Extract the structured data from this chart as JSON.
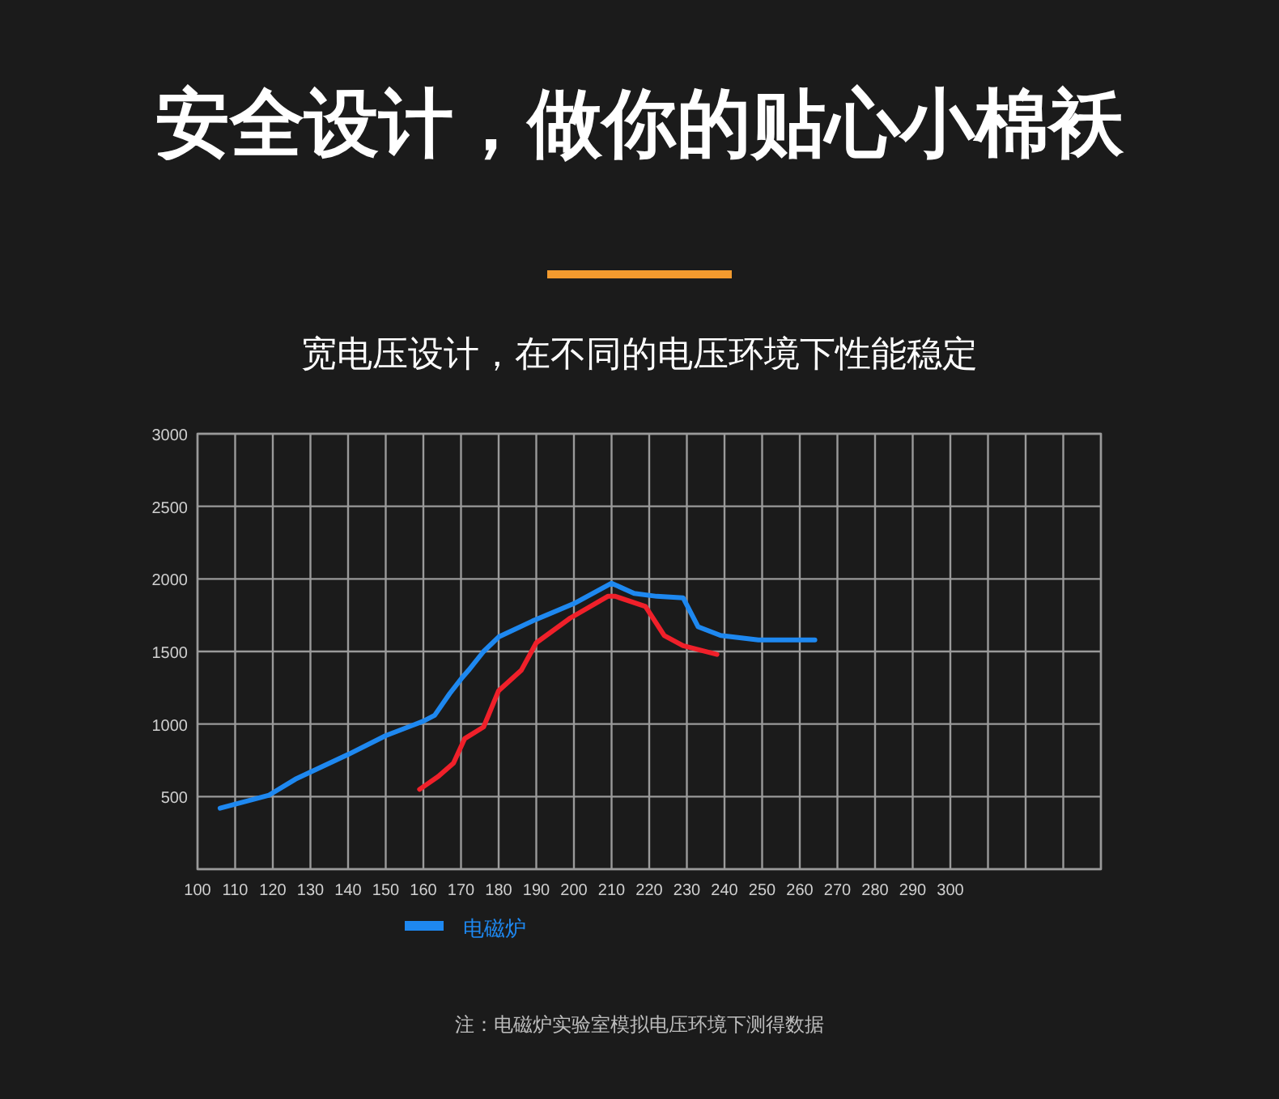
{
  "chart_data": {
    "type": "line",
    "title": "安全设计，做你的贴心小棉袄",
    "subtitle": "宽电压设计，在不同的电压环境下性能稳定",
    "xlim": [
      100,
      340
    ],
    "ylim": [
      0,
      3000
    ],
    "xticks": [
      100,
      110,
      120,
      130,
      140,
      150,
      160,
      170,
      180,
      190,
      200,
      210,
      220,
      230,
      240,
      250,
      260,
      270,
      280,
      290,
      300,
      {
        "value": 310,
        "label": null
      },
      {
        "value": 320,
        "label": null
      },
      {
        "value": 330,
        "label": null
      },
      {
        "value": 340,
        "label": null
      }
    ],
    "yticks": [
      {
        "value": 0,
        "label": null
      },
      500,
      1000,
      1500,
      2000,
      2500,
      3000
    ],
    "grid": true,
    "legend": "bottom",
    "series": [
      {
        "name": "电磁炉",
        "color": "#1e88f0",
        "x": [
          106,
          119,
          126,
          140,
          150,
          160,
          163,
          167,
          170,
          172,
          176,
          180,
          189,
          200,
          210,
          216,
          222,
          229,
          233,
          239,
          249,
          264
        ],
        "values": [
          420,
          510,
          620,
          790,
          920,
          1020,
          1060,
          1210,
          1310,
          1370,
          1500,
          1600,
          1710,
          1830,
          1970,
          1900,
          1880,
          1870,
          1670,
          1610,
          1580,
          1580
        ]
      },
      {
        "color": "#f0202a",
        "x": [
          159,
          164,
          168,
          171,
          176,
          180,
          186,
          190,
          199,
          209,
          211,
          219,
          224,
          229,
          238
        ],
        "values": [
          550,
          640,
          730,
          900,
          980,
          1230,
          1370,
          1560,
          1730,
          1880,
          1880,
          1810,
          1610,
          1540,
          1480
        ]
      }
    ],
    "annotations": [
      "注：电磁炉实验室模拟电压环境下测得数据"
    ]
  }
}
